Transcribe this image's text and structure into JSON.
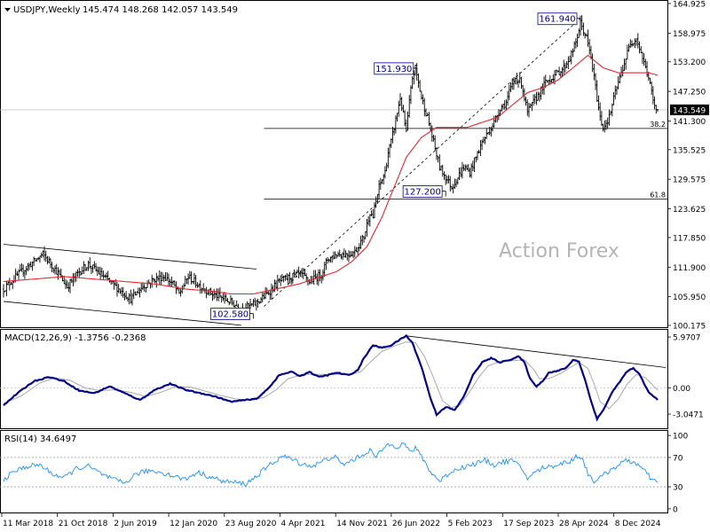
{
  "symbol_label": "USDJPY,Weekly",
  "ohlc_label": "145.474 148.268 142.057 143.549",
  "watermark": "Action Forex",
  "colors": {
    "candle": "#000000",
    "sma": "#e8262c",
    "macd": "#00008b",
    "signal": "#a9a9a9",
    "rsi": "#1e90ff",
    "level": "#000000",
    "watermark": "#b4b4b4",
    "price_tag_bg": "#000000",
    "price_tag_text": "#ffffff"
  },
  "chart_data": [
    {
      "type": "candlestick",
      "name": "price",
      "y_axis": {
        "ticks": [
          "164.925",
          "158.975",
          "153.200",
          "147.250",
          "141.300",
          "135.525",
          "129.575",
          "123.625",
          "117.850",
          "111.900",
          "105.950",
          "100.175"
        ],
        "range": [
          100.175,
          164.925
        ]
      },
      "x_axis": {
        "ticks": [
          "11 Mar 2018",
          "21 Oct 2018",
          "2 Jun 2019",
          "12 Jan 2020",
          "23 Aug 2020",
          "4 Apr 2021",
          "14 Nov 2021",
          "26 Jun 2022",
          "5 Feb 2023",
          "17 Sep 2023",
          "28 Apr 2024",
          "8 Dec 2024"
        ]
      },
      "current_price": "143.549",
      "price_anchors": [
        [
          0,
          107.5
        ],
        [
          10,
          110.5
        ],
        [
          18,
          112.5
        ],
        [
          26,
          114.5
        ],
        [
          34,
          111.5
        ],
        [
          42,
          108
        ],
        [
          50,
          111
        ],
        [
          56,
          112.5
        ],
        [
          66,
          110
        ],
        [
          76,
          107.5
        ],
        [
          84,
          105.5
        ],
        [
          92,
          108
        ],
        [
          100,
          109.5
        ],
        [
          106,
          110
        ],
        [
          112,
          108.5
        ],
        [
          116,
          106.5
        ],
        [
          122,
          110
        ],
        [
          130,
          108
        ],
        [
          138,
          106.5
        ],
        [
          146,
          105.5
        ],
        [
          152,
          104.5
        ],
        [
          158,
          103.5
        ],
        [
          166,
          104.5
        ],
        [
          174,
          106.5
        ],
        [
          182,
          109
        ],
        [
          190,
          110
        ],
        [
          196,
          110.5
        ],
        [
          202,
          109
        ],
        [
          210,
          110.5
        ],
        [
          214,
          113.5
        ],
        [
          220,
          114.5
        ],
        [
          228,
          114.5
        ],
        [
          232,
          115
        ],
        [
          238,
          118
        ],
        [
          242,
          123
        ],
        [
          244,
          122
        ],
        [
          248,
          128
        ],
        [
          252,
          131
        ],
        [
          254,
          135
        ],
        [
          256,
          137
        ],
        [
          258,
          140
        ],
        [
          262,
          146
        ],
        [
          266,
          139
        ],
        [
          268,
          145
        ],
        [
          270,
          150
        ],
        [
          272,
          152
        ],
        [
          274,
          149
        ],
        [
          276,
          146
        ],
        [
          280,
          142
        ],
        [
          284,
          137
        ],
        [
          288,
          132
        ],
        [
          292,
          130
        ],
        [
          296,
          128
        ],
        [
          300,
          130
        ],
        [
          304,
          132
        ],
        [
          308,
          131
        ],
        [
          312,
          134
        ],
        [
          316,
          137
        ],
        [
          320,
          139
        ],
        [
          324,
          141
        ],
        [
          328,
          144
        ],
        [
          332,
          145
        ],
        [
          334,
          147
        ],
        [
          338,
          150
        ],
        [
          342,
          149
        ],
        [
          346,
          143
        ],
        [
          350,
          145
        ],
        [
          354,
          147
        ],
        [
          358,
          149
        ],
        [
          362,
          150
        ],
        [
          366,
          151
        ],
        [
          370,
          152
        ],
        [
          374,
          154
        ],
        [
          378,
          157
        ],
        [
          381,
          161
        ],
        [
          385,
          158
        ],
        [
          388,
          154
        ],
        [
          390,
          150
        ],
        [
          392,
          146
        ],
        [
          394,
          142
        ],
        [
          396,
          140
        ],
        [
          400,
          142
        ],
        [
          404,
          147
        ],
        [
          408,
          151
        ],
        [
          410,
          153
        ],
        [
          414,
          157
        ],
        [
          418,
          158
        ],
        [
          420,
          156
        ],
        [
          423,
          153
        ],
        [
          426,
          150
        ],
        [
          428,
          147
        ],
        [
          430,
          144
        ],
        [
          432,
          143.5
        ]
      ],
      "sma_anchors": [
        [
          0,
          109
        ],
        [
          20,
          109.5
        ],
        [
          40,
          110
        ],
        [
          60,
          109.5
        ],
        [
          80,
          109
        ],
        [
          100,
          108.5
        ],
        [
          120,
          107.5
        ],
        [
          140,
          107
        ],
        [
          150,
          106.5
        ],
        [
          165,
          106.5
        ],
        [
          180,
          107.5
        ],
        [
          195,
          108.5
        ],
        [
          210,
          110
        ],
        [
          220,
          111
        ],
        [
          230,
          113
        ],
        [
          240,
          116
        ],
        [
          250,
          122
        ],
        [
          258,
          128
        ],
        [
          266,
          134
        ],
        [
          276,
          138
        ],
        [
          286,
          140
        ],
        [
          296,
          140
        ],
        [
          306,
          140
        ],
        [
          316,
          141
        ],
        [
          326,
          142
        ],
        [
          336,
          144.5
        ],
        [
          346,
          147
        ],
        [
          356,
          148
        ],
        [
          366,
          149.5
        ],
        [
          376,
          152
        ],
        [
          386,
          154.5
        ],
        [
          396,
          152
        ],
        [
          406,
          151
        ],
        [
          416,
          151
        ],
        [
          426,
          151
        ],
        [
          432,
          150.5
        ]
      ],
      "level_lines": [
        {
          "value": 139.8,
          "label": "38.2"
        },
        {
          "value": 125.6,
          "label": "61.8"
        }
      ],
      "channel": {
        "upper": [
          [
            0,
            116.5
          ],
          [
            167,
            111.5
          ]
        ],
        "lower": [
          [
            0,
            105
          ],
          [
            157,
            100.2
          ]
        ]
      },
      "trendline": [
        [
          172,
          104.0
        ],
        [
          381,
          161.94
        ]
      ],
      "annotations": [
        {
          "text": "161.940",
          "x": 381,
          "price": 161.94
        },
        {
          "text": "151.930",
          "x": 273,
          "price": 151.93
        },
        {
          "text": "127.200",
          "x": 292,
          "price": 127.2
        },
        {
          "text": "102.580",
          "x": 165,
          "price": 102.58
        }
      ]
    },
    {
      "type": "line",
      "name": "MACD",
      "label": "MACD(12,26,9) -1.3756 -0.2368",
      "y_axis": {
        "ticks": [
          "5.9707",
          "0.00",
          "-3.0471"
        ],
        "range": [
          -4.6,
          6.6
        ]
      },
      "macd_anchors": [
        [
          0,
          -2
        ],
        [
          10,
          -0.5
        ],
        [
          20,
          0.8
        ],
        [
          30,
          1.3
        ],
        [
          40,
          0.8
        ],
        [
          50,
          -0.3
        ],
        [
          60,
          -0.6
        ],
        [
          70,
          0.2
        ],
        [
          80,
          -0.6
        ],
        [
          90,
          -1.4
        ],
        [
          100,
          -0.2
        ],
        [
          110,
          0.5
        ],
        [
          120,
          -0.2
        ],
        [
          130,
          -0.6
        ],
        [
          140,
          -1.0
        ],
        [
          150,
          -1.6
        ],
        [
          160,
          -1.4
        ],
        [
          168,
          -1.2
        ],
        [
          176,
          0.2
        ],
        [
          182,
          1.5
        ],
        [
          190,
          1.9
        ],
        [
          196,
          1.4
        ],
        [
          202,
          1.9
        ],
        [
          208,
          1.3
        ],
        [
          214,
          1.5
        ],
        [
          220,
          1.8
        ],
        [
          228,
          1.5
        ],
        [
          234,
          2.1
        ],
        [
          238,
          3.5
        ],
        [
          244,
          5.0
        ],
        [
          250,
          4.7
        ],
        [
          256,
          5.0
        ],
        [
          262,
          5.7
        ],
        [
          266,
          6.1
        ],
        [
          270,
          5.3
        ],
        [
          276,
          2.5
        ],
        [
          282,
          -1.2
        ],
        [
          286,
          -3.1
        ],
        [
          292,
          -2.2
        ],
        [
          298,
          -2.6
        ],
        [
          304,
          -1.0
        ],
        [
          310,
          1.5
        ],
        [
          316,
          3.0
        ],
        [
          322,
          3.5
        ],
        [
          328,
          3.0
        ],
        [
          336,
          3.4
        ],
        [
          340,
          3.7
        ],
        [
          344,
          3.0
        ],
        [
          348,
          1.0
        ],
        [
          352,
          0.2
        ],
        [
          356,
          0.8
        ],
        [
          360,
          1.8
        ],
        [
          366,
          2.0
        ],
        [
          372,
          2.4
        ],
        [
          376,
          3.3
        ],
        [
          380,
          3.1
        ],
        [
          384,
          1.0
        ],
        [
          388,
          -1.5
        ],
        [
          392,
          -3.6
        ],
        [
          396,
          -2.6
        ],
        [
          402,
          -0.5
        ],
        [
          408,
          1.0
        ],
        [
          412,
          2.0
        ],
        [
          416,
          2.3
        ],
        [
          420,
          1.6
        ],
        [
          426,
          -0.5
        ],
        [
          432,
          -1.38
        ]
      ],
      "signal_anchors": [
        [
          0,
          -1.8
        ],
        [
          12,
          -0.9
        ],
        [
          24,
          0.6
        ],
        [
          34,
          1.2
        ],
        [
          44,
          0.9
        ],
        [
          54,
          0
        ],
        [
          64,
          -0.3
        ],
        [
          74,
          -0.2
        ],
        [
          84,
          -0.5
        ],
        [
          94,
          -1.0
        ],
        [
          104,
          -0.5
        ],
        [
          114,
          0.2
        ],
        [
          124,
          0.1
        ],
        [
          134,
          -0.4
        ],
        [
          144,
          -0.9
        ],
        [
          154,
          -1.3
        ],
        [
          164,
          -1.4
        ],
        [
          172,
          -1.1
        ],
        [
          180,
          -0.2
        ],
        [
          188,
          1.1
        ],
        [
          198,
          1.6
        ],
        [
          208,
          1.6
        ],
        [
          218,
          1.6
        ],
        [
          228,
          1.6
        ],
        [
          236,
          1.9
        ],
        [
          242,
          3.0
        ],
        [
          250,
          4.3
        ],
        [
          258,
          4.9
        ],
        [
          266,
          5.4
        ],
        [
          272,
          5.3
        ],
        [
          278,
          3.7
        ],
        [
          284,
          1.2
        ],
        [
          290,
          -1.5
        ],
        [
          296,
          -2.3
        ],
        [
          302,
          -1.9
        ],
        [
          308,
          -0.4
        ],
        [
          314,
          1.3
        ],
        [
          320,
          2.6
        ],
        [
          328,
          3.1
        ],
        [
          336,
          3.2
        ],
        [
          344,
          3.3
        ],
        [
          350,
          2.2
        ],
        [
          354,
          1.1
        ],
        [
          360,
          1.1
        ],
        [
          368,
          1.7
        ],
        [
          374,
          2.4
        ],
        [
          380,
          3.0
        ],
        [
          386,
          2.3
        ],
        [
          390,
          0.5
        ],
        [
          394,
          -1.6
        ],
        [
          400,
          -2.4
        ],
        [
          406,
          -1.3
        ],
        [
          412,
          0.5
        ],
        [
          418,
          1.6
        ],
        [
          424,
          1.2
        ],
        [
          432,
          -0.24
        ]
      ],
      "trendline": [
        [
          266,
          6.1
        ],
        [
          432,
          2.4
        ]
      ]
    },
    {
      "type": "line",
      "name": "RSI",
      "label": "RSI(14) 34.6497",
      "y_axis": {
        "ticks": [
          "100",
          "70",
          "30",
          "0"
        ],
        "range": [
          -5,
          105
        ],
        "guides": [
          70,
          30
        ]
      },
      "rsi_anchors": [
        [
          0,
          40
        ],
        [
          8,
          52
        ],
        [
          16,
          58
        ],
        [
          24,
          60
        ],
        [
          32,
          48
        ],
        [
          40,
          42
        ],
        [
          48,
          55
        ],
        [
          56,
          58
        ],
        [
          64,
          48
        ],
        [
          72,
          40
        ],
        [
          80,
          35
        ],
        [
          88,
          48
        ],
        [
          96,
          52
        ],
        [
          104,
          50
        ],
        [
          112,
          45
        ],
        [
          120,
          40
        ],
        [
          128,
          50
        ],
        [
          136,
          44
        ],
        [
          144,
          38
        ],
        [
          152,
          36
        ],
        [
          160,
          34
        ],
        [
          168,
          46
        ],
        [
          176,
          60
        ],
        [
          184,
          72
        ],
        [
          190,
          68
        ],
        [
          196,
          62
        ],
        [
          204,
          58
        ],
        [
          212,
          66
        ],
        [
          218,
          72
        ],
        [
          224,
          60
        ],
        [
          230,
          66
        ],
        [
          236,
          72
        ],
        [
          242,
          80
        ],
        [
          246,
          70
        ],
        [
          252,
          85
        ],
        [
          256,
          90
        ],
        [
          260,
          84
        ],
        [
          264,
          90
        ],
        [
          268,
          78
        ],
        [
          272,
          82
        ],
        [
          276,
          72
        ],
        [
          282,
          50
        ],
        [
          288,
          38
        ],
        [
          294,
          48
        ],
        [
          300,
          55
        ],
        [
          306,
          58
        ],
        [
          312,
          62
        ],
        [
          318,
          66
        ],
        [
          324,
          60
        ],
        [
          330,
          64
        ],
        [
          336,
          66
        ],
        [
          342,
          55
        ],
        [
          346,
          42
        ],
        [
          350,
          48
        ],
        [
          356,
          56
        ],
        [
          362,
          58
        ],
        [
          368,
          62
        ],
        [
          374,
          64
        ],
        [
          378,
          72
        ],
        [
          382,
          70
        ],
        [
          386,
          48
        ],
        [
          390,
          38
        ],
        [
          394,
          42
        ],
        [
          400,
          52
        ],
        [
          406,
          60
        ],
        [
          412,
          66
        ],
        [
          418,
          62
        ],
        [
          424,
          50
        ],
        [
          428,
          40
        ],
        [
          432,
          34.6
        ]
      ]
    }
  ]
}
